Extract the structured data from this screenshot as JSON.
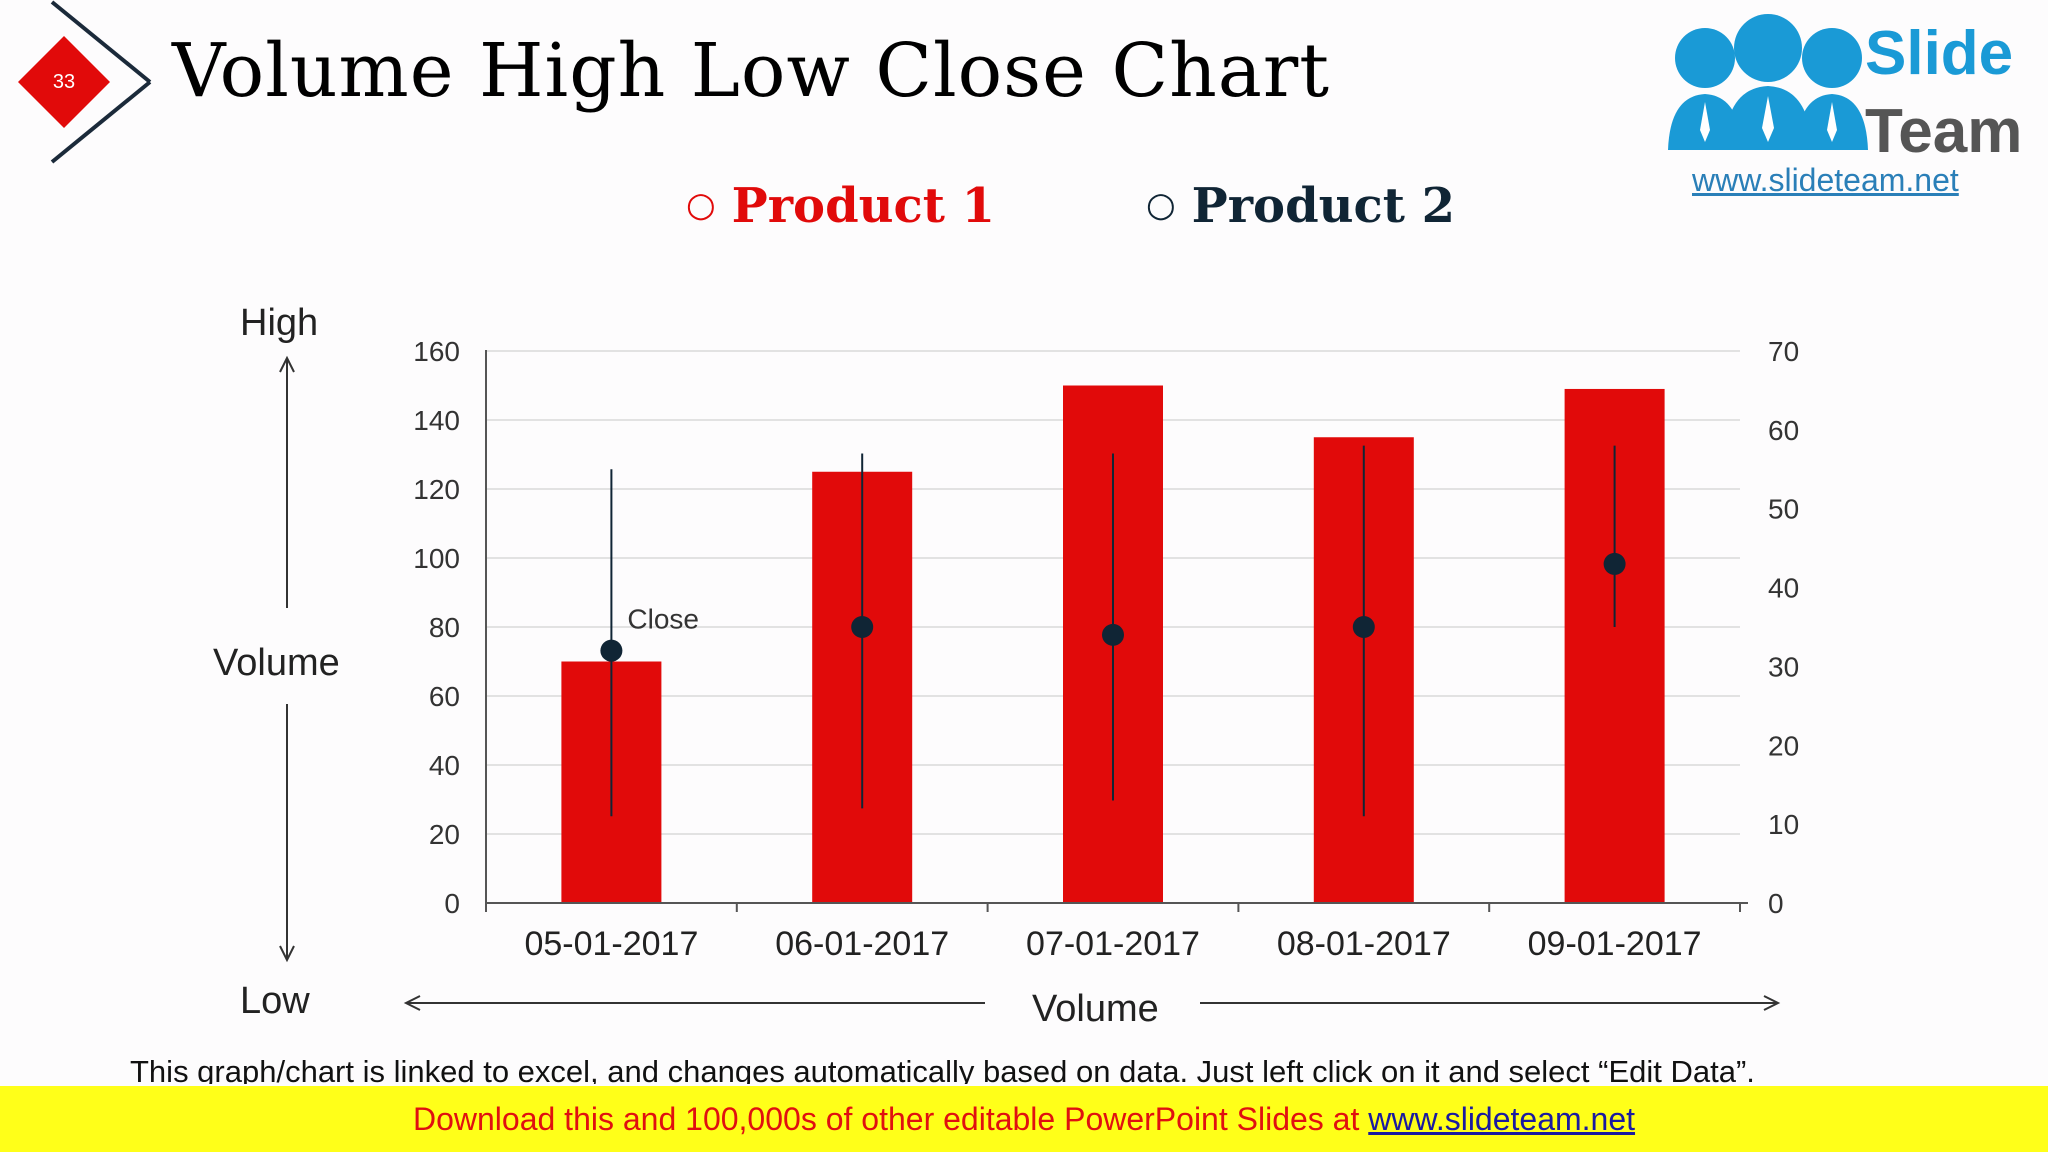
{
  "slide": {
    "number": "33",
    "title": "Volume High Low Close Chart"
  },
  "logo": {
    "word1": "Slide",
    "word2": "Team",
    "url": "www.slideteam.net"
  },
  "legend": {
    "product1": "Product 1",
    "product2": "Product 2",
    "marker": "○"
  },
  "side_labels": {
    "high": "High",
    "volume": "Volume",
    "low": "Low",
    "bottom": "Volume"
  },
  "colors": {
    "accent_red": "#e10a0a",
    "navy": "#102535",
    "banner_yellow": "#ffff19"
  },
  "chart_data": {
    "type": "bar",
    "categories": [
      "05-01-2017",
      "06-01-2017",
      "07-01-2017",
      "08-01-2017",
      "09-01-2017"
    ],
    "series": [
      {
        "name": "Product 1",
        "axis": "left",
        "values": [
          70,
          125,
          150,
          135,
          149
        ]
      },
      {
        "name": "Product 2",
        "axis": "right",
        "type": "high-low-close",
        "high": [
          55,
          57,
          57,
          58,
          58
        ],
        "low": [
          11,
          12,
          13,
          11,
          35
        ],
        "close": [
          32,
          35,
          34,
          35,
          43
        ]
      }
    ],
    "annotation": "Close",
    "ylim": [
      0,
      160
    ],
    "y_ticks": [
      "0",
      "20",
      "40",
      "60",
      "80",
      "100",
      "120",
      "140",
      "160"
    ],
    "y2lim": [
      0,
      70
    ],
    "y2_ticks": [
      "0",
      "10",
      "20",
      "30",
      "40",
      "50",
      "60",
      "70"
    ],
    "grid": true
  },
  "footer": {
    "note": "This graph/chart is linked to excel, and changes automatically based on data. Just left click on it and select “Edit Data”.",
    "banner_text": "Download this and 100,000s of other editable PowerPoint Slides at ",
    "banner_link": "www.slideteam.net"
  }
}
